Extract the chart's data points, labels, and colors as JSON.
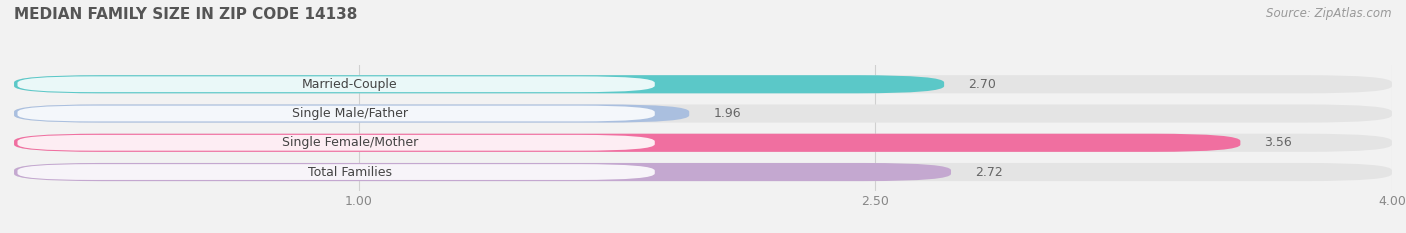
{
  "title": "MEDIAN FAMILY SIZE IN ZIP CODE 14138",
  "source": "Source: ZipAtlas.com",
  "categories": [
    "Married-Couple",
    "Single Male/Father",
    "Single Female/Mother",
    "Total Families"
  ],
  "values": [
    2.7,
    1.96,
    3.56,
    2.72
  ],
  "bar_colors": [
    "#5BC8C8",
    "#AABFDF",
    "#F06FA0",
    "#C4A8D0"
  ],
  "xlim_min": 0.0,
  "xlim_max": 4.0,
  "data_min": 1.0,
  "data_max": 4.0,
  "xticks": [
    1.0,
    2.5,
    4.0
  ],
  "xtick_labels": [
    "1.00",
    "2.50",
    "4.00"
  ],
  "bar_height": 0.62,
  "bar_gap": 0.38,
  "background_color": "#f2f2f2",
  "bar_bg_color": "#e4e4e4",
  "label_bg_color": "#ffffff",
  "label_color": "#444444",
  "value_color": "#666666",
  "title_color": "#555555",
  "source_color": "#999999",
  "grid_color": "#d0d0d0",
  "title_fontsize": 11,
  "label_fontsize": 9,
  "value_fontsize": 9,
  "source_fontsize": 8.5
}
